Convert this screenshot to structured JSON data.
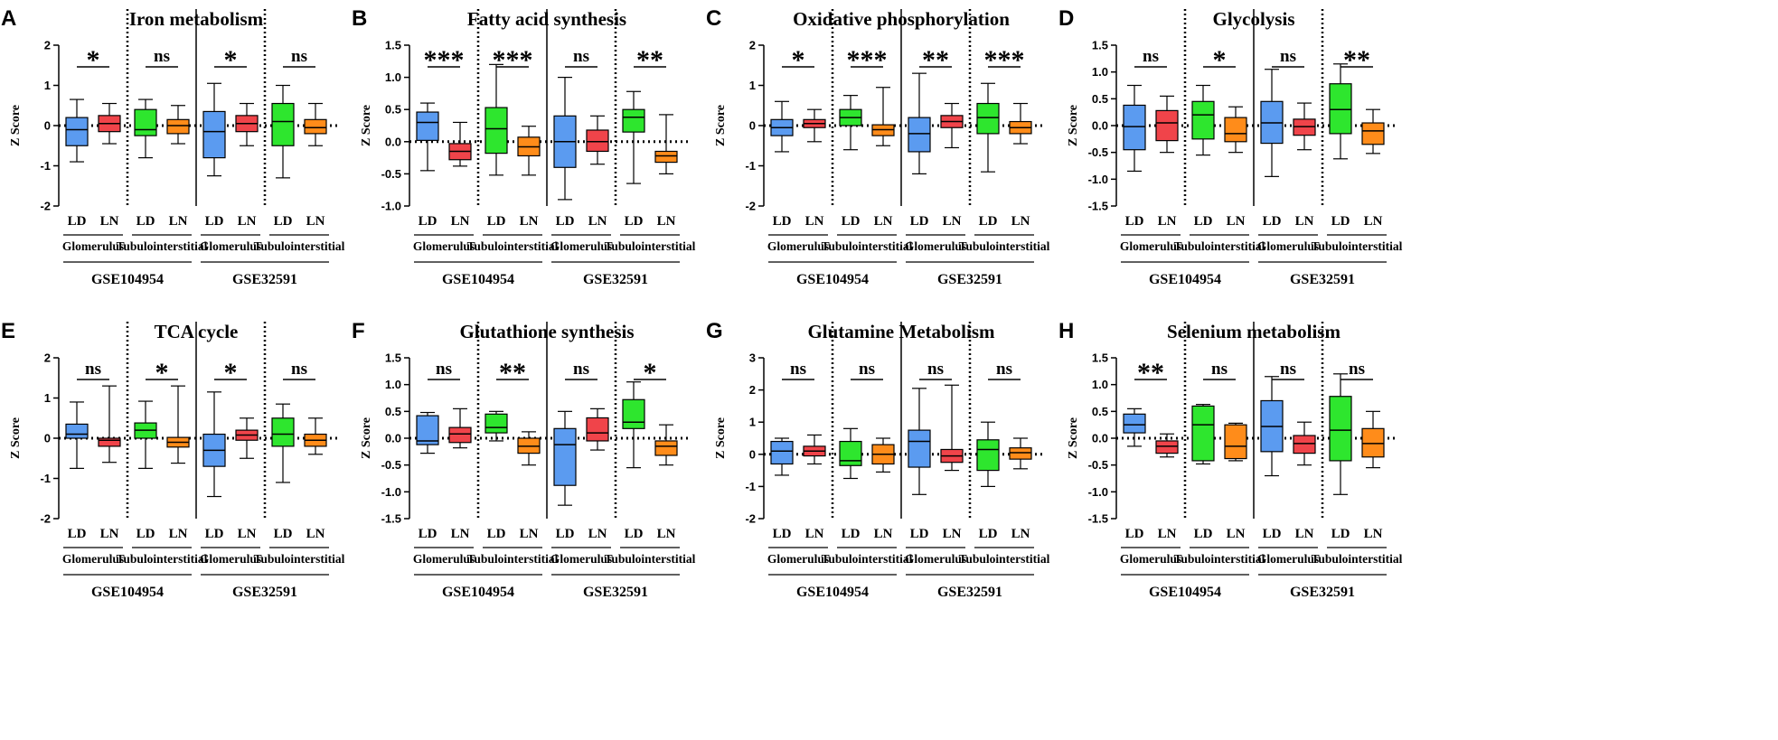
{
  "colors": {
    "LD_glomerulus": "#5b9bf0",
    "LN_glomerulus": "#f0444a",
    "LD_tubulointerstitial": "#2ee62e",
    "LN_tubulointerstitial": "#ff8c1a"
  },
  "labels": {
    "ylabel": "Z Score",
    "groups": [
      "LD",
      "LN"
    ],
    "tissues": [
      "Glomerulus",
      "Tubulointerstitial"
    ],
    "datasets": [
      "GSE104954",
      "GSE32591"
    ]
  },
  "chart_data": [
    {
      "letter": "A",
      "title": "Iron metabolism",
      "type": "box",
      "ylim": [
        -2,
        2
      ],
      "yticks": [
        "-2",
        "-1",
        "0",
        "1",
        "2"
      ],
      "boxes": [
        {
          "dataset": "GSE104954",
          "tissue": "Glomerulus",
          "group": "LD",
          "min": -0.9,
          "q1": -0.5,
          "median": -0.1,
          "q3": 0.2,
          "max": 0.65
        },
        {
          "dataset": "GSE104954",
          "tissue": "Glomerulus",
          "group": "LN",
          "min": -0.45,
          "q1": -0.15,
          "median": 0.05,
          "q3": 0.25,
          "max": 0.55
        },
        {
          "dataset": "GSE104954",
          "tissue": "Tubulointerstitial",
          "group": "LD",
          "min": -0.8,
          "q1": -0.25,
          "median": -0.1,
          "q3": 0.4,
          "max": 0.65
        },
        {
          "dataset": "GSE104954",
          "tissue": "Tubulointerstitial",
          "group": "LN",
          "min": -0.45,
          "q1": -0.2,
          "median": 0.0,
          "q3": 0.15,
          "max": 0.5
        },
        {
          "dataset": "GSE32591",
          "tissue": "Glomerulus",
          "group": "LD",
          "min": -1.25,
          "q1": -0.8,
          "median": -0.15,
          "q3": 0.35,
          "max": 1.05
        },
        {
          "dataset": "GSE32591",
          "tissue": "Glomerulus",
          "group": "LN",
          "min": -0.5,
          "q1": -0.15,
          "median": 0.05,
          "q3": 0.25,
          "max": 0.55
        },
        {
          "dataset": "GSE32591",
          "tissue": "Tubulointerstitial",
          "group": "LD",
          "min": -1.3,
          "q1": -0.5,
          "median": 0.1,
          "q3": 0.55,
          "max": 1.0
        },
        {
          "dataset": "GSE32591",
          "tissue": "Tubulointerstitial",
          "group": "LN",
          "min": -0.5,
          "q1": -0.2,
          "median": -0.05,
          "q3": 0.15,
          "max": 0.55
        }
      ],
      "significance": [
        "*",
        "ns",
        "*",
        "ns"
      ]
    },
    {
      "letter": "B",
      "title": "Fatty acid synthesis",
      "type": "box",
      "ylim": [
        -1.0,
        1.5
      ],
      "yticks": [
        "-1.0",
        "-0.5",
        "0.0",
        "0.5",
        "1.0",
        "1.5"
      ],
      "boxes": [
        {
          "dataset": "GSE104954",
          "tissue": "Glomerulus",
          "group": "LD",
          "min": -0.45,
          "q1": 0.02,
          "median": 0.3,
          "q3": 0.46,
          "max": 0.6
        },
        {
          "dataset": "GSE104954",
          "tissue": "Glomerulus",
          "group": "LN",
          "min": -0.38,
          "q1": -0.28,
          "median": -0.15,
          "q3": -0.03,
          "max": 0.3
        },
        {
          "dataset": "GSE104954",
          "tissue": "Tubulointerstitial",
          "group": "LD",
          "min": -0.52,
          "q1": -0.18,
          "median": 0.2,
          "q3": 0.53,
          "max": 1.2
        },
        {
          "dataset": "GSE104954",
          "tissue": "Tubulointerstitial",
          "group": "LN",
          "min": -0.52,
          "q1": -0.22,
          "median": -0.08,
          "q3": 0.07,
          "max": 0.24
        },
        {
          "dataset": "GSE32591",
          "tissue": "Glomerulus",
          "group": "LD",
          "min": -0.9,
          "q1": -0.4,
          "median": 0.0,
          "q3": 0.4,
          "max": 1.0
        },
        {
          "dataset": "GSE32591",
          "tissue": "Glomerulus",
          "group": "LN",
          "min": -0.35,
          "q1": -0.15,
          "median": 0.0,
          "q3": 0.18,
          "max": 0.4
        },
        {
          "dataset": "GSE32591",
          "tissue": "Tubulointerstitial",
          "group": "LD",
          "min": -0.65,
          "q1": 0.15,
          "median": 0.38,
          "q3": 0.5,
          "max": 0.78
        },
        {
          "dataset": "GSE32591",
          "tissue": "Tubulointerstitial",
          "group": "LN",
          "min": -0.5,
          "q1": -0.32,
          "median": -0.22,
          "q3": -0.15,
          "max": 0.42
        }
      ],
      "significance": [
        "***",
        "***",
        "ns",
        "**"
      ]
    },
    {
      "letter": "C",
      "title": "Oxidative phosphorylation",
      "type": "box",
      "ylim": [
        -2,
        2
      ],
      "yticks": [
        "-2",
        "-1",
        "0",
        "1",
        "2"
      ],
      "boxes": [
        {
          "dataset": "GSE104954",
          "tissue": "Glomerulus",
          "group": "LD",
          "min": -0.65,
          "q1": -0.25,
          "median": -0.05,
          "q3": 0.15,
          "max": 0.6
        },
        {
          "dataset": "GSE104954",
          "tissue": "Glomerulus",
          "group": "LN",
          "min": -0.4,
          "q1": -0.05,
          "median": 0.05,
          "q3": 0.15,
          "max": 0.4
        },
        {
          "dataset": "GSE104954",
          "tissue": "Tubulointerstitial",
          "group": "LD",
          "min": -0.6,
          "q1": 0.0,
          "median": 0.2,
          "q3": 0.4,
          "max": 0.75
        },
        {
          "dataset": "GSE104954",
          "tissue": "Tubulointerstitial",
          "group": "LN",
          "min": -0.5,
          "q1": -0.25,
          "median": -0.1,
          "q3": 0.02,
          "max": 0.95
        },
        {
          "dataset": "GSE32591",
          "tissue": "Glomerulus",
          "group": "LD",
          "min": -1.2,
          "q1": -0.65,
          "median": -0.2,
          "q3": 0.2,
          "max": 1.3
        },
        {
          "dataset": "GSE32591",
          "tissue": "Glomerulus",
          "group": "LN",
          "min": -0.55,
          "q1": -0.05,
          "median": 0.1,
          "q3": 0.25,
          "max": 0.55
        },
        {
          "dataset": "GSE32591",
          "tissue": "Tubulointerstitial",
          "group": "LD",
          "min": -1.15,
          "q1": -0.2,
          "median": 0.2,
          "q3": 0.55,
          "max": 1.05
        },
        {
          "dataset": "GSE32591",
          "tissue": "Tubulointerstitial",
          "group": "LN",
          "min": -0.45,
          "q1": -0.2,
          "median": -0.05,
          "q3": 0.1,
          "max": 0.55
        }
      ],
      "significance": [
        "*",
        "***",
        "**",
        "***"
      ]
    },
    {
      "letter": "D",
      "title": "Glycolysis",
      "type": "box",
      "ylim": [
        -1.5,
        1.5
      ],
      "yticks": [
        "-1.5",
        "-1.0",
        "-0.5",
        "0.0",
        "0.5",
        "1.0",
        "1.5"
      ],
      "boxes": [
        {
          "dataset": "GSE104954",
          "tissue": "Glomerulus",
          "group": "LD",
          "min": -0.85,
          "q1": -0.45,
          "median": -0.02,
          "q3": 0.38,
          "max": 0.75
        },
        {
          "dataset": "GSE104954",
          "tissue": "Glomerulus",
          "group": "LN",
          "min": -0.5,
          "q1": -0.28,
          "median": 0.05,
          "q3": 0.28,
          "max": 0.55
        },
        {
          "dataset": "GSE104954",
          "tissue": "Tubulointerstitial",
          "group": "LD",
          "min": -0.55,
          "q1": -0.25,
          "median": 0.2,
          "q3": 0.45,
          "max": 0.75
        },
        {
          "dataset": "GSE104954",
          "tissue": "Tubulointerstitial",
          "group": "LN",
          "min": -0.5,
          "q1": -0.3,
          "median": -0.15,
          "q3": 0.15,
          "max": 0.35
        },
        {
          "dataset": "GSE32591",
          "tissue": "Glomerulus",
          "group": "LD",
          "min": -0.95,
          "q1": -0.33,
          "median": 0.05,
          "q3": 0.45,
          "max": 1.05
        },
        {
          "dataset": "GSE32591",
          "tissue": "Glomerulus",
          "group": "LN",
          "min": -0.45,
          "q1": -0.18,
          "median": -0.02,
          "q3": 0.12,
          "max": 0.42
        },
        {
          "dataset": "GSE32591",
          "tissue": "Tubulointerstitial",
          "group": "LD",
          "min": -0.62,
          "q1": -0.15,
          "median": 0.3,
          "q3": 0.78,
          "max": 1.15
        },
        {
          "dataset": "GSE32591",
          "tissue": "Tubulointerstitial",
          "group": "LN",
          "min": -0.52,
          "q1": -0.35,
          "median": -0.1,
          "q3": 0.05,
          "max": 0.3
        }
      ],
      "significance": [
        "ns",
        "*",
        "ns",
        "**"
      ]
    },
    {
      "letter": "E",
      "title": "TCA cycle",
      "type": "box",
      "ylim": [
        -2,
        2
      ],
      "yticks": [
        "-2",
        "-1",
        "0",
        "1",
        "2"
      ],
      "boxes": [
        {
          "dataset": "GSE104954",
          "tissue": "Glomerulus",
          "group": "LD",
          "min": -0.75,
          "q1": 0.0,
          "median": 0.1,
          "q3": 0.35,
          "max": 0.9
        },
        {
          "dataset": "GSE104954",
          "tissue": "Glomerulus",
          "group": "LN",
          "min": -0.6,
          "q1": -0.2,
          "median": -0.05,
          "q3": 0.0,
          "max": 1.3
        },
        {
          "dataset": "GSE104954",
          "tissue": "Tubulointerstitial",
          "group": "LD",
          "min": -0.75,
          "q1": 0.0,
          "median": 0.2,
          "q3": 0.38,
          "max": 0.92
        },
        {
          "dataset": "GSE104954",
          "tissue": "Tubulointerstitial",
          "group": "LN",
          "min": -0.62,
          "q1": -0.22,
          "median": -0.1,
          "q3": 0.02,
          "max": 1.3
        },
        {
          "dataset": "GSE32591",
          "tissue": "Glomerulus",
          "group": "LD",
          "min": -1.45,
          "q1": -0.7,
          "median": -0.3,
          "q3": 0.1,
          "max": 1.15
        },
        {
          "dataset": "GSE32591",
          "tissue": "Glomerulus",
          "group": "LN",
          "min": -0.5,
          "q1": -0.05,
          "median": 0.08,
          "q3": 0.2,
          "max": 0.5
        },
        {
          "dataset": "GSE32591",
          "tissue": "Tubulointerstitial",
          "group": "LD",
          "min": -1.1,
          "q1": -0.2,
          "median": 0.1,
          "q3": 0.5,
          "max": 0.85
        },
        {
          "dataset": "GSE32591",
          "tissue": "Tubulointerstitial",
          "group": "LN",
          "min": -0.4,
          "q1": -0.2,
          "median": -0.05,
          "q3": 0.1,
          "max": 0.5
        }
      ],
      "significance": [
        "ns",
        "*",
        "*",
        "ns"
      ]
    },
    {
      "letter": "F",
      "title": "Glutathione synthesis",
      "type": "box",
      "ylim": [
        -1.5,
        1.5
      ],
      "yticks": [
        "-1.5",
        "-1.0",
        "-0.5",
        "0.0",
        "0.5",
        "1.0",
        "1.5"
      ],
      "boxes": [
        {
          "dataset": "GSE104954",
          "tissue": "Glomerulus",
          "group": "LD",
          "min": -0.28,
          "q1": -0.12,
          "median": -0.05,
          "q3": 0.42,
          "max": 0.48
        },
        {
          "dataset": "GSE104954",
          "tissue": "Glomerulus",
          "group": "LN",
          "min": -0.18,
          "q1": -0.08,
          "median": 0.08,
          "q3": 0.2,
          "max": 0.55
        },
        {
          "dataset": "GSE104954",
          "tissue": "Tubulointerstitial",
          "group": "LD",
          "min": -0.05,
          "q1": 0.1,
          "median": 0.2,
          "q3": 0.45,
          "max": 0.5
        },
        {
          "dataset": "GSE104954",
          "tissue": "Tubulointerstitial",
          "group": "LN",
          "min": -0.5,
          "q1": -0.28,
          "median": -0.15,
          "q3": 0.0,
          "max": 0.12
        },
        {
          "dataset": "GSE32591",
          "tissue": "Glomerulus",
          "group": "LD",
          "min": -1.25,
          "q1": -0.88,
          "median": -0.12,
          "q3": 0.18,
          "max": 0.5
        },
        {
          "dataset": "GSE32591",
          "tissue": "Glomerulus",
          "group": "LN",
          "min": -0.22,
          "q1": -0.05,
          "median": 0.1,
          "q3": 0.38,
          "max": 0.55
        },
        {
          "dataset": "GSE32591",
          "tissue": "Tubulointerstitial",
          "group": "LD",
          "min": -0.55,
          "q1": 0.18,
          "median": 0.3,
          "q3": 0.72,
          "max": 1.05
        },
        {
          "dataset": "GSE32591",
          "tissue": "Tubulointerstitial",
          "group": "LN",
          "min": -0.5,
          "q1": -0.32,
          "median": -0.15,
          "q3": -0.05,
          "max": 0.25
        }
      ],
      "significance": [
        "ns",
        "**",
        "ns",
        "*"
      ]
    },
    {
      "letter": "G",
      "title": "Glutamine Metabolism",
      "type": "box",
      "ylim": [
        -2,
        3
      ],
      "yticks": [
        "-2",
        "-1",
        "0",
        "1",
        "2",
        "3"
      ],
      "boxes": [
        {
          "dataset": "GSE104954",
          "tissue": "Glomerulus",
          "group": "LD",
          "min": -0.65,
          "q1": -0.3,
          "median": 0.1,
          "q3": 0.4,
          "max": 0.5
        },
        {
          "dataset": "GSE104954",
          "tissue": "Glomerulus",
          "group": "LN",
          "min": -0.3,
          "q1": -0.05,
          "median": 0.1,
          "q3": 0.25,
          "max": 0.6
        },
        {
          "dataset": "GSE104954",
          "tissue": "Tubulointerstitial",
          "group": "LD",
          "min": -0.75,
          "q1": -0.35,
          "median": -0.2,
          "q3": 0.4,
          "max": 0.8
        },
        {
          "dataset": "GSE104954",
          "tissue": "Tubulointerstitial",
          "group": "LN",
          "min": -0.55,
          "q1": -0.3,
          "median": 0.0,
          "q3": 0.3,
          "max": 0.5
        },
        {
          "dataset": "GSE32591",
          "tissue": "Glomerulus",
          "group": "LD",
          "min": -1.25,
          "q1": -0.4,
          "median": 0.4,
          "q3": 0.75,
          "max": 2.05
        },
        {
          "dataset": "GSE32591",
          "tissue": "Glomerulus",
          "group": "LN",
          "min": -0.5,
          "q1": -0.25,
          "median": -0.05,
          "q3": 0.15,
          "max": 2.15
        },
        {
          "dataset": "GSE32591",
          "tissue": "Tubulointerstitial",
          "group": "LD",
          "min": -1.0,
          "q1": -0.5,
          "median": 0.15,
          "q3": 0.45,
          "max": 1.0
        },
        {
          "dataset": "GSE32591",
          "tissue": "Tubulointerstitial",
          "group": "LN",
          "min": -0.45,
          "q1": -0.15,
          "median": 0.05,
          "q3": 0.2,
          "max": 0.5
        }
      ],
      "significance": [
        "ns",
        "ns",
        "ns",
        "ns"
      ]
    },
    {
      "letter": "H",
      "title": "Selenium metabolism",
      "type": "box",
      "ylim": [
        -1.5,
        1.5
      ],
      "yticks": [
        "-1.5",
        "-1.0",
        "-0.5",
        "0.0",
        "0.5",
        "1.0",
        "1.5"
      ],
      "boxes": [
        {
          "dataset": "GSE104954",
          "tissue": "Glomerulus",
          "group": "LD",
          "min": -0.15,
          "q1": 0.1,
          "median": 0.25,
          "q3": 0.45,
          "max": 0.55
        },
        {
          "dataset": "GSE104954",
          "tissue": "Glomerulus",
          "group": "LN",
          "min": -0.35,
          "q1": -0.28,
          "median": -0.15,
          "q3": -0.05,
          "max": 0.08
        },
        {
          "dataset": "GSE104954",
          "tissue": "Tubulointerstitial",
          "group": "LD",
          "min": -0.48,
          "q1": -0.42,
          "median": 0.25,
          "q3": 0.6,
          "max": 0.63
        },
        {
          "dataset": "GSE104954",
          "tissue": "Tubulointerstitial",
          "group": "LN",
          "min": -0.42,
          "q1": -0.38,
          "median": -0.15,
          "q3": 0.25,
          "max": 0.28
        },
        {
          "dataset": "GSE32591",
          "tissue": "Glomerulus",
          "group": "LD",
          "min": -0.7,
          "q1": -0.25,
          "median": 0.22,
          "q3": 0.7,
          "max": 1.15
        },
        {
          "dataset": "GSE32591",
          "tissue": "Glomerulus",
          "group": "LN",
          "min": -0.5,
          "q1": -0.28,
          "median": -0.1,
          "q3": 0.05,
          "max": 0.3
        },
        {
          "dataset": "GSE32591",
          "tissue": "Tubulointerstitial",
          "group": "LD",
          "min": -1.05,
          "q1": -0.42,
          "median": 0.15,
          "q3": 0.78,
          "max": 1.2
        },
        {
          "dataset": "GSE32591",
          "tissue": "Tubulointerstitial",
          "group": "LN",
          "min": -0.55,
          "q1": -0.35,
          "median": -0.1,
          "q3": 0.18,
          "max": 0.5
        }
      ],
      "significance": [
        "**",
        "ns",
        "ns",
        "ns"
      ]
    }
  ]
}
